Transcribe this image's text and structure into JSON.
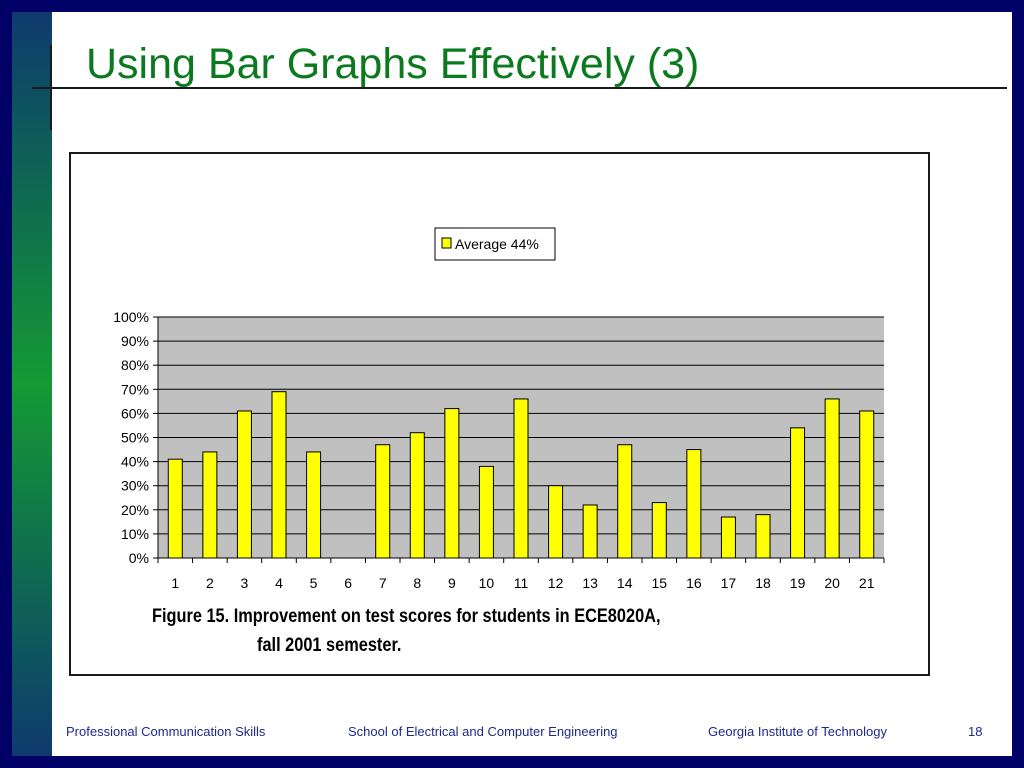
{
  "slide": {
    "title": "Using Bar Graphs Effectively (3)",
    "caption_line1": "Figure 15.   Improvement on test  scores for students in ECE8020A,",
    "caption_line2": "fall 2001 semester."
  },
  "footer": {
    "course": "Professional Communication Skills",
    "school": "School of Electrical and Computer Engineering",
    "institution": "Georgia Institute of Technology",
    "page_number": "18"
  },
  "chart_data": {
    "type": "bar",
    "categories": [
      "1",
      "2",
      "3",
      "4",
      "5",
      "6",
      "7",
      "8",
      "9",
      "10",
      "11",
      "12",
      "13",
      "14",
      "15",
      "16",
      "17",
      "18",
      "19",
      "20",
      "21"
    ],
    "series": [
      {
        "name": "Average 44%",
        "values": [
          0.41,
          0.44,
          0.61,
          0.69,
          0.44,
          0,
          0.47,
          0.52,
          0.62,
          0.38,
          0.66,
          0.3,
          0.22,
          0.47,
          0.23,
          0.45,
          0.17,
          0.18,
          0.54,
          0.66,
          0.61
        ]
      }
    ],
    "ylim": [
      0,
      1
    ],
    "yticks": [
      "0%",
      "10%",
      "20%",
      "30%",
      "40%",
      "50%",
      "60%",
      "70%",
      "80%",
      "90%",
      "100%"
    ],
    "legend_position": "top-center",
    "grid": true,
    "colors": {
      "bar_fill": "#ffff00",
      "bar_stroke": "#000000",
      "plot_background": "#c0c0c0",
      "gridline": "#000000"
    }
  }
}
